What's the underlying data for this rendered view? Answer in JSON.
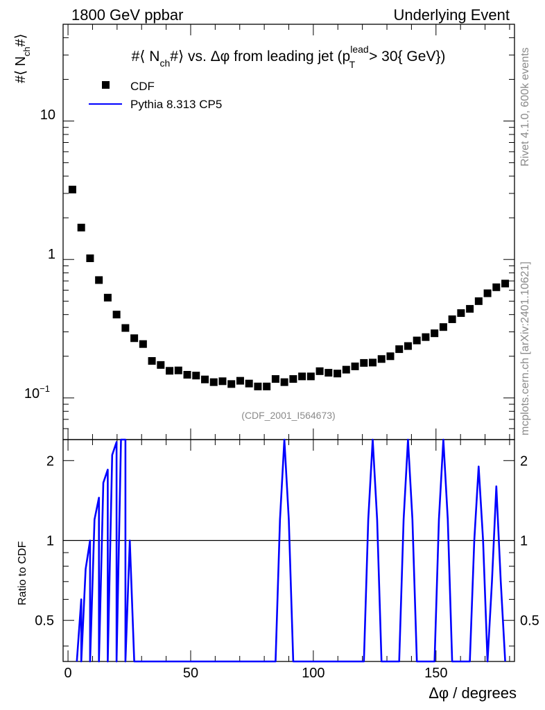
{
  "header": {
    "left": "1800 GeV ppbar",
    "right": "Underlying Event"
  },
  "side_text": {
    "rivet": "Rivet 4.1.0,  600k events",
    "mcplots": "mcplots.cern.ch [arXiv:2401.10621]"
  },
  "chart_data": [
    {
      "type": "scatter",
      "title": "#⟨ N_ch#⟩ vs. Δφ from leading jet  (p_T^lead > 30{ GeV})",
      "title_parts": {
        "pre": "#⟨ N",
        "sub_ch": "ch",
        "mid": "#⟩ vs. Δφ from leading jet  (p",
        "sup_lead": "lead",
        "sub_T": "T",
        "post": " > 30{ GeV})"
      },
      "ylabel": "#⟨ N_ch#⟩",
      "ylabel_parts": {
        "pre": "#⟨ N",
        "sub": "ch",
        "post": "#⟩"
      },
      "yscale": "log",
      "ylim": [
        0.05,
        50
      ],
      "xlim": [
        -2,
        182
      ],
      "y_ticks": [
        {
          "value": 0.1,
          "base": "10",
          "exp": "−1"
        },
        {
          "value": 1,
          "label": "1"
        },
        {
          "value": 10,
          "label": "10"
        }
      ],
      "watermark": "(CDF_2001_I564673)",
      "legend": {
        "position": "top-left",
        "entries": [
          "CDF",
          "Pythia 8.313 CP5"
        ]
      },
      "series": [
        {
          "name": "CDF",
          "marker": "square",
          "color": "#000000",
          "x": [
            1.8,
            5.4,
            9.0,
            12.6,
            16.2,
            19.8,
            23.4,
            27.0,
            30.6,
            34.2,
            37.8,
            41.4,
            45.0,
            48.6,
            52.2,
            55.8,
            59.4,
            63.0,
            66.6,
            70.2,
            73.8,
            77.4,
            81.0,
            84.6,
            88.2,
            91.8,
            95.4,
            99.0,
            102.6,
            106.2,
            109.8,
            113.4,
            117.0,
            120.6,
            124.2,
            127.8,
            131.4,
            135.0,
            138.6,
            142.2,
            145.8,
            149.4,
            153.0,
            156.6,
            160.2,
            163.8,
            167.4,
            171.0,
            174.6,
            178.2
          ],
          "y": [
            3.2,
            1.7,
            1.02,
            0.71,
            0.53,
            0.4,
            0.32,
            0.27,
            0.245,
            0.185,
            0.173,
            0.157,
            0.158,
            0.147,
            0.145,
            0.136,
            0.13,
            0.132,
            0.126,
            0.133,
            0.127,
            0.121,
            0.121,
            0.137,
            0.13,
            0.137,
            0.143,
            0.143,
            0.156,
            0.152,
            0.15,
            0.16,
            0.169,
            0.179,
            0.18,
            0.191,
            0.2,
            0.225,
            0.237,
            0.26,
            0.275,
            0.293,
            0.325,
            0.37,
            0.41,
            0.44,
            0.5,
            0.57,
            0.63,
            0.67
          ]
        },
        {
          "name": "Pythia 8.313 CP5",
          "color": "#0000ff",
          "x": [],
          "y": []
        }
      ]
    },
    {
      "type": "line",
      "ylabel": "Ratio to CDF",
      "xlabel": "Δφ / degrees",
      "xlim": [
        -2,
        182
      ],
      "ylim": [
        0.35,
        2.4
      ],
      "yscale": "log",
      "x_ticks": [
        0,
        50,
        100,
        150
      ],
      "y_ticks": [
        0.5,
        1,
        2
      ],
      "reference_line": 1,
      "series": [
        {
          "name": "Pythia 8.313 CP5",
          "color": "#0000ff",
          "x": [
            3.6,
            5.4,
            5.4,
            7.2,
            9.0,
            9.0,
            10.8,
            12.6,
            12.6,
            14.4,
            16.2,
            16.2,
            18.0,
            19.8,
            19.8,
            21.6,
            23.4,
            23.4,
            25.2,
            27.0,
            84.6,
            86.4,
            88.2,
            90.0,
            91.8,
            120.6,
            122.4,
            124.2,
            126.0,
            127.8,
            135.0,
            136.8,
            138.6,
            140.4,
            142.2,
            149.4,
            151.2,
            153.0,
            154.8,
            156.6,
            163.8,
            165.6,
            167.4,
            169.2,
            171.0,
            172.8,
            174.6,
            176.4,
            178.2
          ],
          "y": [
            0.35,
            0.6,
            0.35,
            0.78,
            1.0,
            0.35,
            1.2,
            1.45,
            0.35,
            1.65,
            1.85,
            0.35,
            2.1,
            2.35,
            0.35,
            2.5,
            2.5,
            0.35,
            1.0,
            0.35,
            0.35,
            1.2,
            2.6,
            1.2,
            0.35,
            0.35,
            1.2,
            2.6,
            1.2,
            0.35,
            0.35,
            1.2,
            2.6,
            1.2,
            0.35,
            0.35,
            1.2,
            2.45,
            1.2,
            0.35,
            0.35,
            1.0,
            1.9,
            1.0,
            0.35,
            0.7,
            1.6,
            0.7,
            0.35
          ]
        }
      ]
    }
  ]
}
